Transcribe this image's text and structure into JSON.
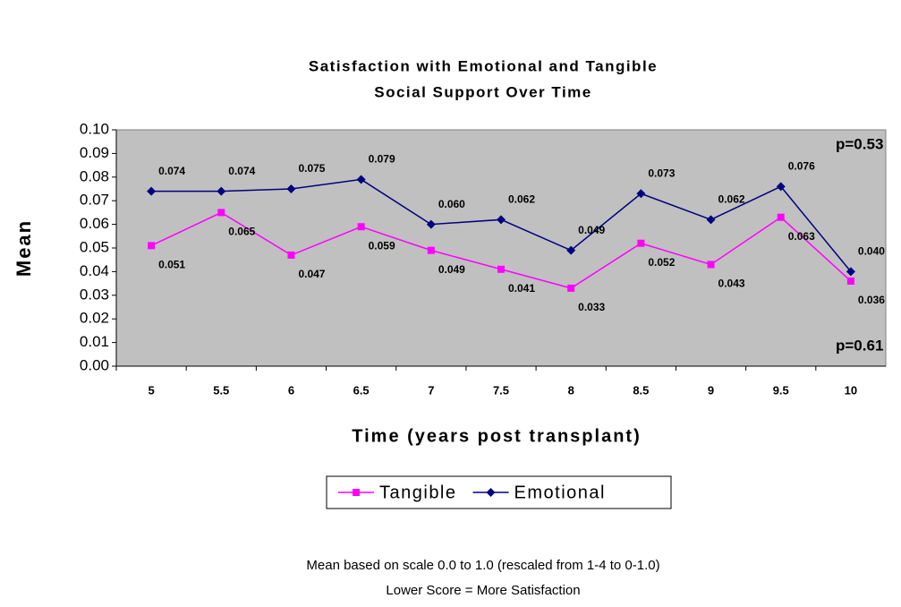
{
  "chart_data": {
    "type": "line",
    "title": [
      "Satisfaction with Emotional and Tangible",
      "Social Support Over Time"
    ],
    "x_label": "Time (years post transplant)",
    "y_label": "Mean",
    "categories": [
      "5",
      "5.5",
      "6",
      "6.5",
      "7",
      "7.5",
      "8",
      "8.5",
      "9",
      "9.5",
      "10"
    ],
    "series": [
      {
        "name": "Tangible",
        "color": "#ff00ff",
        "marker": "square",
        "values": [
          0.051,
          0.065,
          0.047,
          0.059,
          0.049,
          0.041,
          0.033,
          0.052,
          0.043,
          0.063,
          0.036
        ],
        "value_labels": [
          "0.051",
          "0.065",
          "0.047",
          "0.059",
          "0.049",
          "0.041",
          "0.033",
          "0.052",
          "0.043",
          "0.063",
          "0.036"
        ]
      },
      {
        "name": "Emotional",
        "color": "#000080",
        "marker": "diamond",
        "values": [
          0.074,
          0.074,
          0.075,
          0.079,
          0.06,
          0.062,
          0.049,
          0.073,
          0.062,
          0.076,
          0.04
        ],
        "value_labels": [
          "0.074",
          "0.074",
          "0.075",
          "0.079",
          "0.060",
          "0.062",
          "0.049",
          "0.073",
          "0.062",
          "0.076",
          "0.040"
        ]
      }
    ],
    "ylim": [
      0,
      0.1
    ],
    "yticks": [
      {
        "value": 0,
        "label": "0.00"
      },
      {
        "value": 0.01,
        "label": "0.01"
      },
      {
        "value": 0.02,
        "label": "0.02"
      },
      {
        "value": 0.03,
        "label": "0.03"
      },
      {
        "value": 0.04,
        "label": "0.04"
      },
      {
        "value": 0.05,
        "label": "0.05"
      },
      {
        "value": 0.06,
        "label": "0.06"
      },
      {
        "value": 0.07,
        "label": "0.07"
      },
      {
        "value": 0.08,
        "label": "0.08"
      },
      {
        "value": 0.09,
        "label": "0.09"
      },
      {
        "value": 0.1,
        "label": "0.10"
      }
    ],
    "annotations": [
      {
        "text": "p=0.53",
        "color": "#333399"
      },
      {
        "text": "p=0.61",
        "color": "#ff33cc"
      }
    ],
    "footnotes": [
      "Mean based on scale 0.0 to 1.0 (rescaled from 1-4 to 0-1.0)",
      "Lower Score = More Satisfaction"
    ],
    "plot_background": "#c0c0c0",
    "legend": "bottom"
  }
}
